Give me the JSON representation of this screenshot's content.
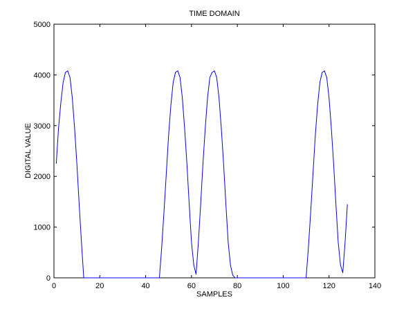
{
  "chart_data": {
    "type": "line",
    "title": "TIME DOMAIN",
    "xlabel": "SAMPLES",
    "ylabel": "DIGITAL VALUE",
    "xlim": [
      0,
      140
    ],
    "ylim": [
      0,
      5000
    ],
    "x_ticks": [
      0,
      20,
      40,
      60,
      80,
      100,
      120,
      140
    ],
    "y_ticks": [
      0,
      1000,
      2000,
      3000,
      4000,
      5000
    ],
    "grid": false,
    "legend": "none",
    "line_color": "#0000ff",
    "series": [
      {
        "x": [
          1,
          2,
          3,
          4,
          5,
          6,
          7,
          8,
          9,
          10,
          11,
          12,
          13,
          14,
          15,
          20,
          30,
          40,
          46,
          47,
          48,
          49,
          50,
          51,
          52,
          53,
          54,
          55,
          56,
          57,
          58,
          59,
          60,
          61,
          62,
          63,
          64,
          65,
          66,
          67,
          68,
          69,
          70,
          71,
          72,
          73,
          74,
          75,
          76,
          77,
          78,
          79,
          80,
          90,
          100,
          110,
          111,
          112,
          113,
          114,
          115,
          116,
          117,
          118,
          119,
          120,
          121,
          122,
          123,
          124,
          125,
          126,
          127,
          128
        ],
        "y": [
          2250,
          2950,
          3450,
          3850,
          4050,
          4080,
          3950,
          3550,
          2950,
          2250,
          1450,
          700,
          0,
          0,
          0,
          0,
          0,
          0,
          0,
          600,
          1300,
          2050,
          2800,
          3400,
          3850,
          4050,
          4080,
          3950,
          3550,
          2950,
          2250,
          1450,
          700,
          250,
          70,
          700,
          1450,
          2250,
          2950,
          3550,
          3950,
          4050,
          4080,
          3950,
          3550,
          2950,
          2250,
          1450,
          700,
          250,
          50,
          0,
          0,
          0,
          0,
          0,
          600,
          1300,
          2050,
          2800,
          3400,
          3850,
          4050,
          4080,
          3950,
          3550,
          2950,
          2250,
          1450,
          700,
          250,
          100,
          700,
          1450
        ]
      }
    ]
  }
}
